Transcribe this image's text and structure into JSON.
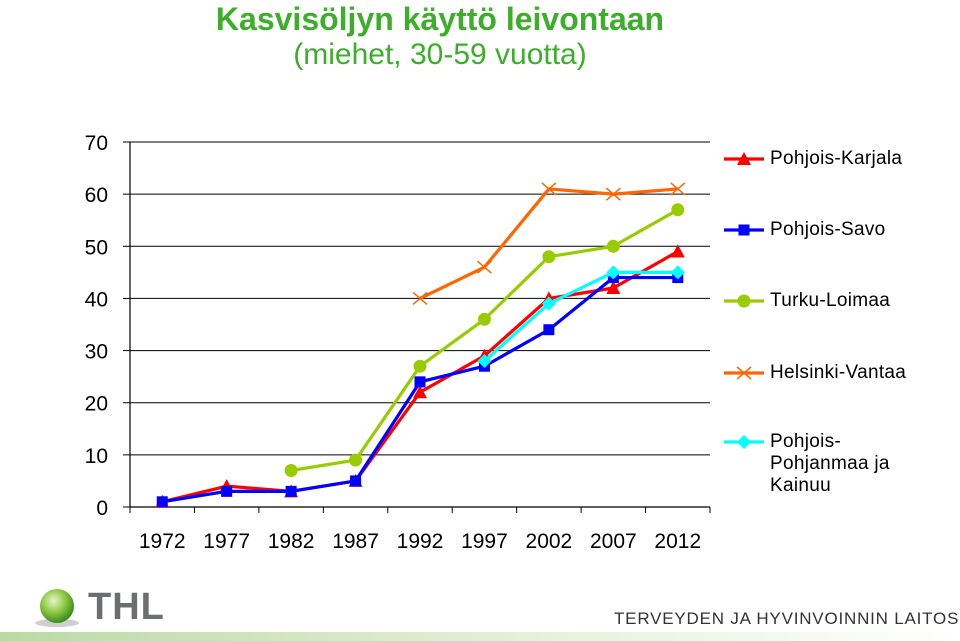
{
  "title": "Kasvisöljyn käyttö leivontaan",
  "subtitle": "(miehet, 30-59 vuotta)",
  "chart_data": {
    "type": "line",
    "x": [
      1972,
      1977,
      1982,
      1987,
      1992,
      1997,
      2002,
      2007,
      2012
    ],
    "ylim": [
      0,
      70
    ],
    "yticks": [
      0,
      10,
      20,
      30,
      40,
      50,
      60,
      70
    ],
    "grid": true,
    "legend_position": "right",
    "series": [
      {
        "name": "Pohjois-Karjala",
        "color": "#ff0000",
        "marker": "triangle",
        "values": [
          1,
          4,
          3,
          5,
          22,
          29,
          40,
          42,
          49
        ]
      },
      {
        "name": "Pohjois-Savo",
        "color": "#0000ff",
        "marker": "square",
        "values": [
          1,
          3,
          3,
          5,
          24,
          27,
          34,
          44,
          44
        ]
      },
      {
        "name": "Turku-Loimaa",
        "color": "#99cc00",
        "marker": "circle",
        "values": [
          null,
          null,
          7,
          9,
          27,
          36,
          48,
          50,
          57
        ]
      },
      {
        "name": "Helsinki-Vantaa",
        "color": "#ff6600",
        "marker": "x",
        "values": [
          null,
          null,
          null,
          null,
          40,
          46,
          61,
          60,
          61
        ]
      },
      {
        "name": "Pohjois-Pohjanmaa ja Kainuu",
        "color": "#00ffff",
        "marker": "diamond",
        "values": [
          null,
          null,
          null,
          null,
          null,
          28,
          39,
          45,
          45
        ]
      }
    ]
  },
  "legend": {
    "items": [
      {
        "label": "Pohjois-Karjala"
      },
      {
        "label": "Pohjois-Savo"
      },
      {
        "label": "Turku-Loimaa"
      },
      {
        "label": "Helsinki-Vantaa"
      },
      {
        "label_lines": [
          "Pohjois-",
          "Pohjanmaa ja",
          "Kainuu"
        ]
      }
    ]
  },
  "footer": {
    "logo_text": "THL",
    "organization": "TERVEYDEN JA HYVINVOINNIN LAITOS"
  }
}
